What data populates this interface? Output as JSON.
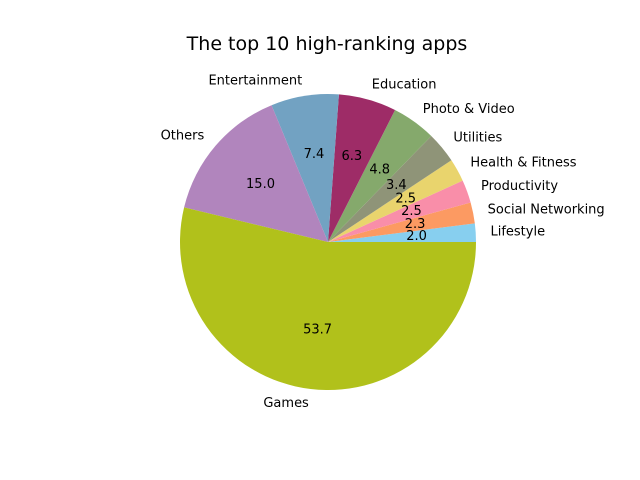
{
  "chart_data": {
    "type": "pie",
    "title": "The top 10 high-ranking apps",
    "start_angle_deg": 0,
    "direction": "counterclockwise",
    "slices": [
      {
        "label": "Lifestyle",
        "value": 2.0,
        "display": "2.0",
        "color": "#87cfef"
      },
      {
        "label": "Social Networking",
        "value": 2.3,
        "display": "2.3",
        "color": "#fc9a62"
      },
      {
        "label": "Productivity",
        "value": 2.5,
        "display": "2.5",
        "color": "#f98ea9"
      },
      {
        "label": "Health & Fitness",
        "value": 2.5,
        "display": "2.5",
        "color": "#e9d46d"
      },
      {
        "label": "Utilities",
        "value": 3.4,
        "display": "3.4",
        "color": "#8f9478"
      },
      {
        "label": "Photo & Video",
        "value": 4.8,
        "display": "4.8",
        "color": "#85a96c"
      },
      {
        "label": "Education",
        "value": 6.3,
        "display": "6.3",
        "color": "#9e2c67"
      },
      {
        "label": "Entertainment",
        "value": 7.4,
        "display": "7.4",
        "color": "#72a2c2"
      },
      {
        "label": "Others",
        "value": 15.0,
        "display": "15.0",
        "color": "#b185bd"
      },
      {
        "label": "Games",
        "value": 53.7,
        "display": "53.7",
        "color": "#b1c11b"
      }
    ]
  }
}
